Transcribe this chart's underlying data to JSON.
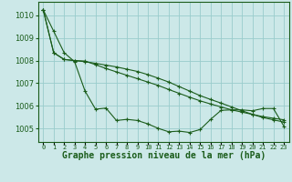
{
  "background_color": "#cce8e8",
  "grid_color": "#99cccc",
  "line_color": "#1a5c1a",
  "xlabel": "Graphe pression niveau de la mer (hPa)",
  "xlabel_fontsize": 7,
  "xtick_labels": [
    "0",
    "1",
    "2",
    "3",
    "4",
    "5",
    "6",
    "7",
    "8",
    "9",
    "10",
    "11",
    "12",
    "13",
    "14",
    "15",
    "16",
    "17",
    "18",
    "19",
    "20",
    "21",
    "22",
    "23"
  ],
  "ylim": [
    1004.4,
    1010.6
  ],
  "yticks": [
    1005,
    1006,
    1007,
    1008,
    1009,
    1010
  ],
  "tick_fontsize": 6,
  "series1": [
    1010.25,
    1009.3,
    1008.35,
    1007.95,
    1006.65,
    1005.85,
    1005.9,
    1005.35,
    1005.4,
    1005.35,
    1005.2,
    1005.0,
    1004.85,
    1004.88,
    1004.82,
    1004.95,
    1005.4,
    1005.8,
    1005.82,
    1005.82,
    1005.78,
    1005.88,
    1005.88,
    1005.1
  ],
  "series2": [
    1010.25,
    1008.35,
    1008.05,
    1008.0,
    1007.98,
    1007.82,
    1007.65,
    1007.5,
    1007.35,
    1007.2,
    1007.05,
    1006.9,
    1006.72,
    1006.55,
    1006.38,
    1006.22,
    1006.08,
    1005.95,
    1005.82,
    1005.72,
    1005.62,
    1005.52,
    1005.45,
    1005.38
  ],
  "series3": [
    1010.25,
    1008.35,
    1008.05,
    1008.0,
    1007.95,
    1007.88,
    1007.8,
    1007.72,
    1007.62,
    1007.52,
    1007.38,
    1007.22,
    1007.05,
    1006.85,
    1006.65,
    1006.45,
    1006.28,
    1006.12,
    1005.95,
    1005.78,
    1005.62,
    1005.48,
    1005.38,
    1005.28
  ]
}
